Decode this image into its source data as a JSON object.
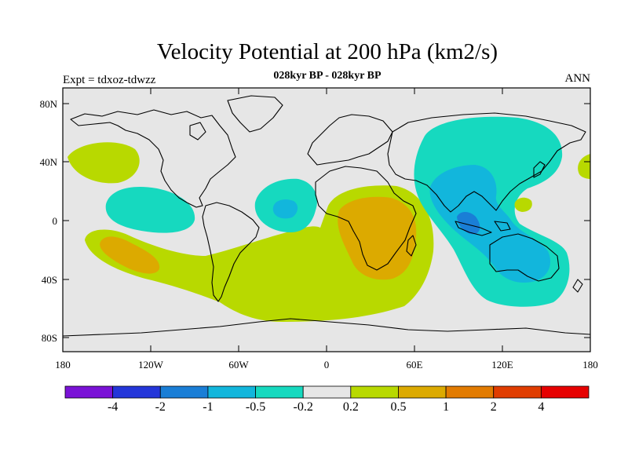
{
  "header": {
    "title": "Velocity Potential at 200 hPa (km2/s)",
    "subtitle": "028kyr BP - 028kyr BP",
    "left_label": "Expt = tdxoz-tdwzz",
    "right_label": "ANN"
  },
  "axes": {
    "y_ticks": [
      "80N",
      "40N",
      "0",
      "40S",
      "80S"
    ],
    "x_ticks": [
      "180",
      "120W",
      "60W",
      "0",
      "60E",
      "120E",
      "180"
    ]
  },
  "colorbar": {
    "colors": [
      "#7a12d6",
      "#2436d9",
      "#1a7ed6",
      "#12b6dc",
      "#16d9bf",
      "#e6e6e6",
      "#b8d900",
      "#dcaa00",
      "#e27b00",
      "#e03d00",
      "#e60000"
    ],
    "labels": [
      "-4",
      "-2",
      "-1",
      "-0.5",
      "-0.2",
      "0.2",
      "0.5",
      "1",
      "2",
      "4"
    ]
  }
}
